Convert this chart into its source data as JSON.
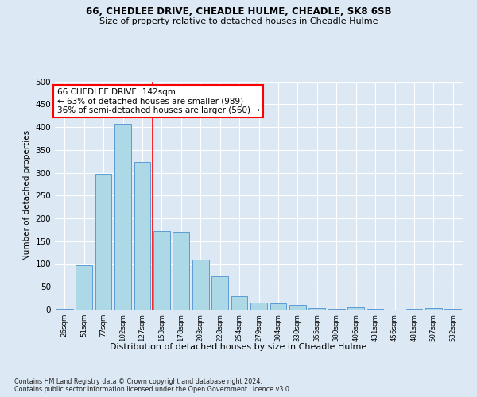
{
  "title1": "66, CHEDLEE DRIVE, CHEADLE HULME, CHEADLE, SK8 6SB",
  "title2": "Size of property relative to detached houses in Cheadle Hulme",
  "xlabel": "Distribution of detached houses by size in Cheadle Hulme",
  "ylabel": "Number of detached properties",
  "bar_labels": [
    "26sqm",
    "51sqm",
    "77sqm",
    "102sqm",
    "127sqm",
    "153sqm",
    "178sqm",
    "203sqm",
    "228sqm",
    "254sqm",
    "279sqm",
    "304sqm",
    "330sqm",
    "355sqm",
    "380sqm",
    "406sqm",
    "431sqm",
    "456sqm",
    "481sqm",
    "507sqm",
    "532sqm"
  ],
  "bar_values": [
    2,
    97,
    298,
    407,
    323,
    172,
    170,
    110,
    73,
    30,
    16,
    14,
    10,
    4,
    2,
    5,
    1,
    0,
    1,
    3,
    2
  ],
  "bar_color": "#add8e6",
  "bar_edge_color": "#5b9bd5",
  "background_color": "#dce9f5",
  "plot_bg_color": "#dce9f5",
  "grid_color": "#ffffff",
  "annotation_line_color": "#ff0000",
  "annotation_box_text": "66 CHEDLEE DRIVE: 142sqm\n← 63% of detached houses are smaller (989)\n36% of semi-detached houses are larger (560) →",
  "annotation_box_color": "#ffffff",
  "annotation_box_edge_color": "#ff0000",
  "ylim": [
    0,
    500
  ],
  "yticks": [
    0,
    50,
    100,
    150,
    200,
    250,
    300,
    350,
    400,
    450,
    500
  ],
  "footnote": "Contains HM Land Registry data © Crown copyright and database right 2024.\nContains public sector information licensed under the Open Government Licence v3.0.",
  "line_x_index": 4.54
}
